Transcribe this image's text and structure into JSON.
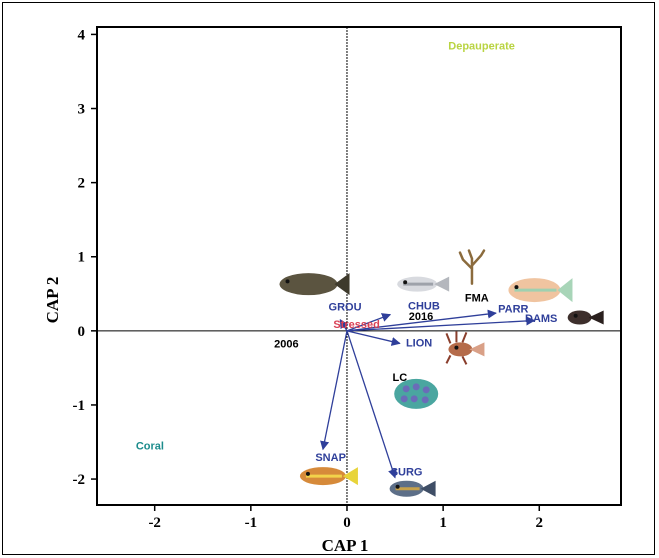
{
  "chart_data": {
    "type": "scatter",
    "title": "",
    "xlabel": "CAP 1",
    "ylabel": "CAP 2",
    "xlim": [
      -2.6,
      2.85
    ],
    "ylim": [
      -2.35,
      4.1
    ],
    "x_ticks": [
      -2,
      -1,
      0,
      1,
      2
    ],
    "y_ticks": [
      -2,
      -1,
      0,
      1,
      2,
      3,
      4
    ],
    "x_tick_labels": [
      "-2",
      "-1",
      "0",
      "1",
      "2"
    ],
    "y_tick_labels": [
      "-2",
      "-1",
      "0",
      "1",
      "2",
      "3",
      "4"
    ],
    "grid": false,
    "vectors": [
      {
        "name": "GROU",
        "x": -0.07,
        "y": 0.15,
        "label": {
          "x": -0.02,
          "y": 0.33
        },
        "color": "#2f3f9a"
      },
      {
        "name": "CHUB",
        "x": 0.45,
        "y": 0.22,
        "label": {
          "x": 0.8,
          "y": 0.34
        },
        "color": "#2f3f9a"
      },
      {
        "name": "PARR",
        "x": 1.55,
        "y": 0.24,
        "label": {
          "x": 1.73,
          "y": 0.3
        },
        "color": "#2f3f9a"
      },
      {
        "name": "DAMS",
        "x": 1.95,
        "y": 0.14,
        "label": {
          "x": 2.02,
          "y": 0.17
        },
        "color": "#2f3f9a"
      },
      {
        "name": "LION",
        "x": 0.55,
        "y": -0.17,
        "label": {
          "x": 0.75,
          "y": -0.16
        },
        "color": "#2f3f9a"
      },
      {
        "name": "SNAP",
        "x": -0.25,
        "y": -1.6,
        "label": {
          "x": -0.17,
          "y": -1.7
        },
        "color": "#2f3f9a"
      },
      {
        "name": "SURG",
        "x": 0.5,
        "y": -1.98,
        "label": {
          "x": 0.62,
          "y": -1.9
        },
        "color": "#2f3f9a"
      }
    ],
    "labels": [
      {
        "text": "Depauperate",
        "x": 1.4,
        "y": 3.85,
        "color": "#b9d442"
      },
      {
        "text": "Coral",
        "x": -2.05,
        "y": -1.55,
        "color": "#1c8c8c"
      },
      {
        "text": "Stressed",
        "x": 0.1,
        "y": 0.09,
        "color": "#d94055"
      },
      {
        "text": "2016",
        "x": 0.77,
        "y": 0.2,
        "color": "#000000"
      },
      {
        "text": "2006",
        "x": -0.63,
        "y": -0.17,
        "color": "#000000"
      },
      {
        "text": "FMA",
        "x": 1.35,
        "y": 0.45,
        "color": "#000000"
      },
      {
        "text": "LC",
        "x": 0.55,
        "y": -0.62,
        "color": "#000000"
      }
    ],
    "illustrations": [
      {
        "icon": "grouper-fish-icon",
        "x": -0.4,
        "y": 0.63
      },
      {
        "icon": "chub-fish-icon",
        "x": 0.73,
        "y": 0.63
      },
      {
        "icon": "seaweed-icon",
        "x": 1.3,
        "y": 0.84
      },
      {
        "icon": "parrotfish-icon",
        "x": 1.95,
        "y": 0.55
      },
      {
        "icon": "damselfish-icon",
        "x": 2.42,
        "y": 0.18
      },
      {
        "icon": "lionfish-icon",
        "x": 1.18,
        "y": -0.25
      },
      {
        "icon": "coral-icon",
        "x": 0.72,
        "y": -0.85
      },
      {
        "icon": "snapper-fish-icon",
        "x": -0.25,
        "y": -1.96
      },
      {
        "icon": "surgeonfish-icon",
        "x": 0.62,
        "y": -2.13
      }
    ]
  },
  "colors": {
    "vector": "#2f3f9a",
    "axis": "#000000"
  }
}
